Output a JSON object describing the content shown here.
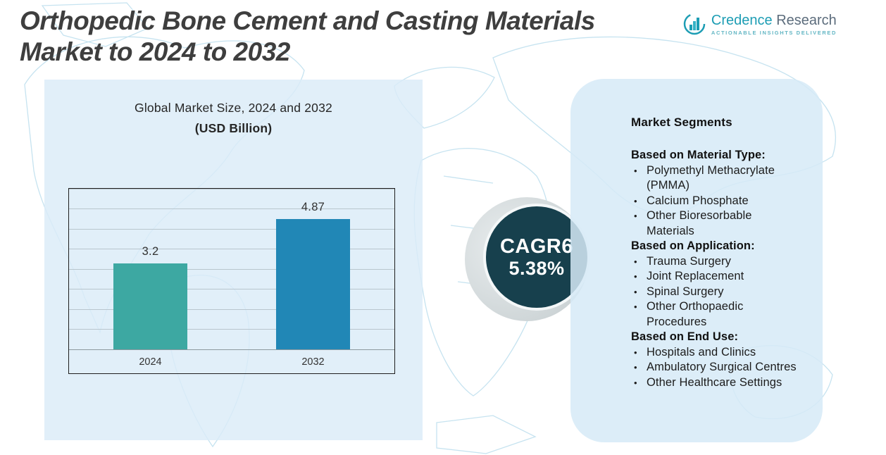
{
  "header": {
    "title_line1": "Orthopedic Bone Cement and Casting Materials",
    "title_line2": "Market to 2024 to 2032"
  },
  "logo": {
    "brand": "Credence",
    "brand2": "Research",
    "tagline": "Actionable Insights Delivered",
    "accent_color": "#1d9db4"
  },
  "chart_panel": {
    "subtitle_line1": "Global Market Size, 2024 and 2032",
    "subtitle_line2": "(USD Billion)"
  },
  "chart_data": {
    "type": "bar",
    "title": "Global Market Size, 2024 and 2032 (USD Billion)",
    "categories": [
      "2024",
      "2032"
    ],
    "values": [
      3.2,
      4.87
    ],
    "value_labels": [
      "3.2",
      "4.87"
    ],
    "bar_colors": [
      "#3da8a2",
      "#2187b6"
    ],
    "ylim": [
      0,
      6
    ],
    "grid": true,
    "legend": "none"
  },
  "cagr_badge": {
    "label": "CAGR6",
    "value": "5.38%",
    "bg_color": "#17404d"
  },
  "segments_panel": {
    "title": "Market Segments",
    "groups": [
      {
        "heading": "Based on Material Type:",
        "items": [
          "Polymethyl Methacrylate (PMMA)",
          "Calcium Phosphate",
          "Other Bioresorbable Materials"
        ]
      },
      {
        "heading": "Based on Application:",
        "items": [
          "Trauma Surgery",
          "Joint Replacement",
          "Spinal Surgery",
          "Other Orthopaedic Procedures"
        ]
      },
      {
        "heading": "Based on End Use:",
        "items": [
          "Hospitals and Clinics",
          "Ambulatory Surgical Centres",
          "Other Healthcare Settings"
        ]
      }
    ]
  }
}
